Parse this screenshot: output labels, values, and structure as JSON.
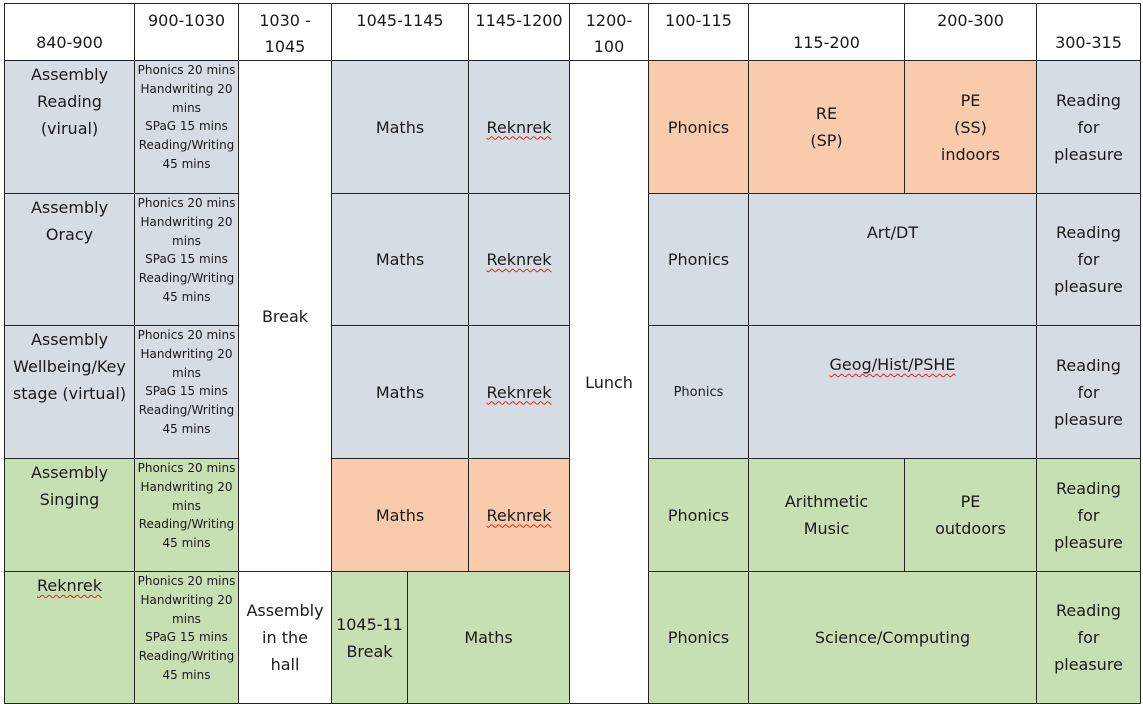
{
  "headers": [
    "840-900",
    "900-1030",
    "1030 -\n1045",
    "1045-1145",
    "1145-1200",
    "1200-\n100",
    "100-115",
    "115-200",
    "200-300",
    "300-315"
  ],
  "rows": [
    {
      "assembly": "Assembly\nReading\n(virual)",
      "sessions": "Phonics 20 mins\nHandwriting 20 mins\nSPaG 15 mins\nReading/Writing 45 mins",
      "maths": "Maths",
      "reknrek": "Reknrek",
      "phonics": "Phonics",
      "c115": "RE\n(SP)",
      "c200": "PE\n(SS)\nindoors",
      "reading": "Reading\nfor\npleasure"
    },
    {
      "assembly": "Assembly\nOracy",
      "sessions": "Phonics 20 mins\nHandwriting 20 mins\nSPaG 15 mins\nReading/Writing 45 mins",
      "maths": "Maths",
      "reknrek": "Reknrek",
      "phonics": "Phonics",
      "afternoon": "Art/DT",
      "reading": "Reading\nfor\npleasure"
    },
    {
      "assembly": "Assembly\nWellbeing/Key\nstage (virtual)",
      "sessions": "Phonics 20 mins\nHandwriting 20 mins\nSPaG 15 mins\nReading/Writing 45 mins",
      "maths": "Maths",
      "reknrek": "Reknrek",
      "phonics": "Phonics",
      "afternoon": "Geog/Hist/PSHE",
      "reading": "Reading\nfor\npleasure"
    },
    {
      "assembly": "Assembly\nSinging",
      "sessions": "Phonics 20 mins\nHandwriting 20 mins\nReading/Writing 45 mins",
      "maths": "Maths",
      "reknrek": "Reknrek",
      "phonics": "Phonics",
      "c115": "Arithmetic\nMusic",
      "c200": "PE\noutdoors",
      "reading": "Reading\nfor\npleasure"
    },
    {
      "assembly": "Reknrek",
      "sessions": "Phonics 20 mins\nHandwriting 20 mins\nSPaG 15 mins\nReading/Writing 45 mins",
      "hall": "Assembly\nin the\nhall",
      "break_short": "1045-11\nBreak",
      "maths": "Maths",
      "phonics": "Phonics",
      "afternoon": "Science/Computing",
      "reading": "Reading\nfor\npleasure"
    }
  ],
  "break_label": "Break",
  "lunch_label": "Lunch",
  "colors": {
    "grey": "#d6dce4",
    "orange": "#f8cbad",
    "green": "#c6e0b4"
  }
}
